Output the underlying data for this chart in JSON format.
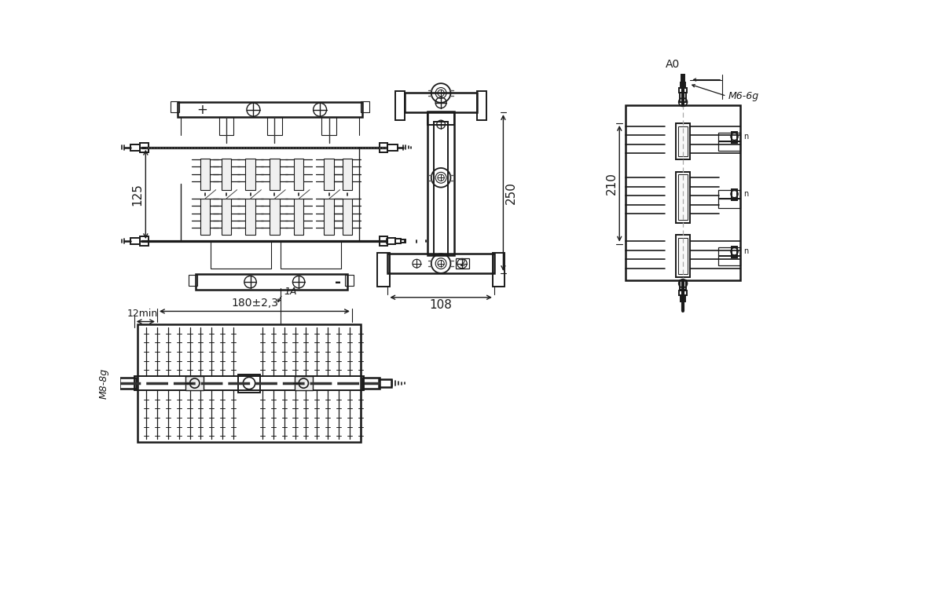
{
  "bg_color": "#ffffff",
  "line_color": "#1a1a1a",
  "fig_width": 12.0,
  "fig_height": 7.82,
  "dpi": 100,
  "annotations": {
    "dim_125": "125",
    "dim_250": "250",
    "dim_210": "210",
    "dim_108": "108",
    "dim_180": "180±2,3",
    "dim_12min": "12min",
    "dim_M8": "M8-8g",
    "dim_M6": "M6-6g",
    "label_A0": "A0",
    "label_1A": "1A"
  }
}
